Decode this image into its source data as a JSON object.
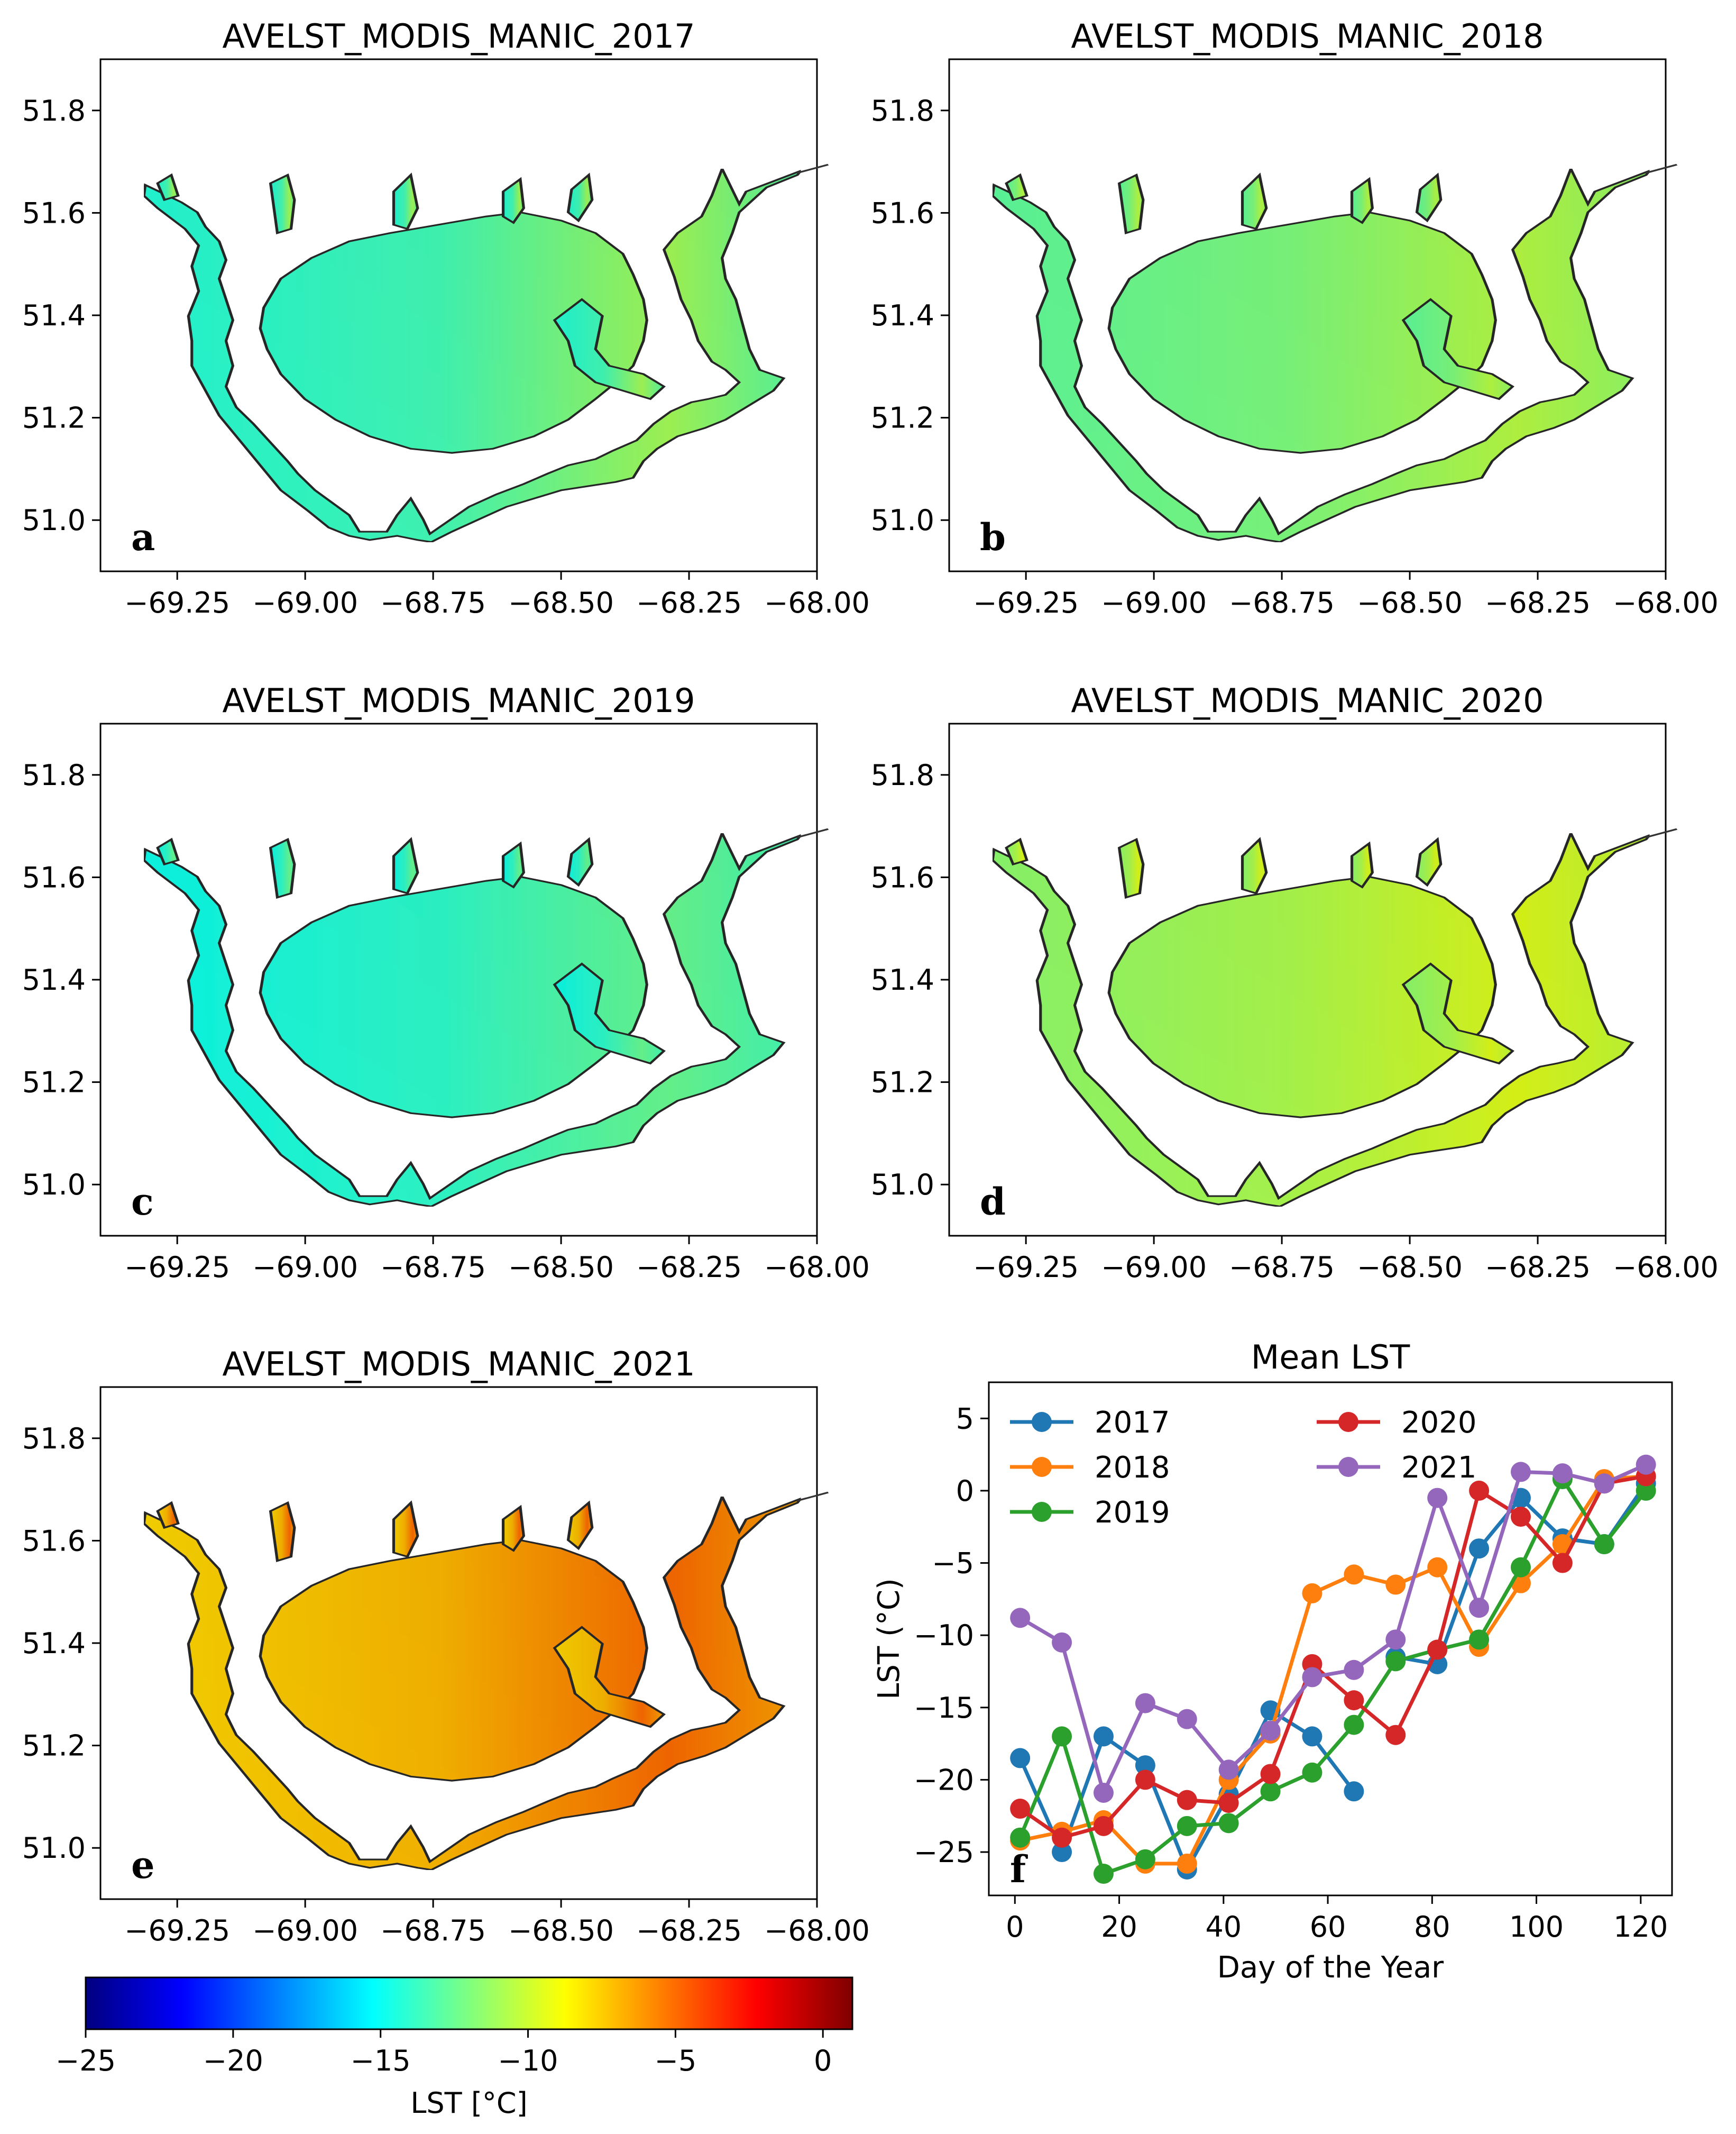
{
  "maps": [
    {
      "title": "AVELST_MODIS_MANIC_2017",
      "letter": "a",
      "mean_lst_c": -13.5,
      "east_lst_c": -11.0
    },
    {
      "title": "AVELST_MODIS_MANIC_2018",
      "letter": "b",
      "mean_lst_c": -12.0,
      "east_lst_c": -10.5
    },
    {
      "title": "AVELST_MODIS_MANIC_2019",
      "letter": "c",
      "mean_lst_c": -14.0,
      "east_lst_c": -12.5
    },
    {
      "title": "AVELST_MODIS_MANIC_2020",
      "letter": "d",
      "mean_lst_c": -10.8,
      "east_lst_c": -9.5
    },
    {
      "title": "AVELST_MODIS_MANIC_2021",
      "letter": "e",
      "mean_lst_c": -7.0,
      "east_lst_c": -5.0
    }
  ],
  "map_axes": {
    "xticks": [
      -69.25,
      -69.0,
      -68.75,
      -68.5,
      -68.25,
      -68.0
    ],
    "xtick_labels": [
      "−69.25",
      "−69.00",
      "−68.75",
      "−68.50",
      "−68.25",
      "−68.00"
    ],
    "xlim": [
      -69.4,
      -68.0
    ],
    "yticks": [
      51.0,
      51.2,
      51.4,
      51.6,
      51.8
    ],
    "ytick_labels": [
      "51.0",
      "51.2",
      "51.4",
      "51.6",
      "51.8"
    ],
    "ylim": [
      50.9,
      51.9
    ]
  },
  "colorbar": {
    "label": "LST [°C]",
    "range": [
      -25,
      1
    ],
    "ticks": [
      -25,
      -20,
      -15,
      -10,
      -5,
      0
    ],
    "tick_labels": [
      "−25",
      "−20",
      "−15",
      "−10",
      "−5",
      "0"
    ],
    "colormap": "jet"
  },
  "chart_data": {
    "type": "line",
    "title": "Mean LST",
    "letter": "f",
    "xlabel": "Day of the Year",
    "ylabel": "LST (°C)",
    "xlim": [
      -5,
      126
    ],
    "ylim": [
      -28,
      7.5
    ],
    "xticks": [
      0,
      20,
      40,
      60,
      80,
      100,
      120
    ],
    "xtick_labels": [
      "0",
      "20",
      "40",
      "60",
      "80",
      "100",
      "120"
    ],
    "yticks": [
      -25,
      -20,
      -15,
      -10,
      -5,
      0,
      5
    ],
    "ytick_labels": [
      "−25",
      "−20",
      "−15",
      "−10",
      "−5",
      "0",
      "5"
    ],
    "x": [
      1,
      9,
      17,
      25,
      33,
      41,
      49,
      57,
      65,
      73,
      81,
      89,
      97,
      105,
      113,
      121
    ],
    "series": [
      {
        "name": "2017",
        "color": "#1f77b4",
        "x": [
          1,
          9,
          17,
          25,
          33,
          41,
          49,
          57,
          65
        ],
        "values": [
          -18.5,
          -25.0,
          -17.0,
          -19.0,
          -26.2,
          -21.0,
          -15.2,
          -17.0,
          -20.8
        ]
      },
      {
        "name": "2017",
        "color": "#1f77b4",
        "x": [
          73,
          81,
          89,
          97,
          105,
          113,
          121
        ],
        "values": [
          -11.5,
          -12.0,
          -4.0,
          -0.5,
          -3.3,
          -3.7,
          0.5
        ],
        "legend": false
      },
      {
        "name": "2018",
        "color": "#ff7f0e",
        "x": [
          1,
          9,
          17,
          25,
          33,
          41,
          49,
          57,
          65,
          73,
          81,
          89,
          97,
          105,
          113,
          121
        ],
        "values": [
          -24.2,
          -23.6,
          -22.8,
          -25.8,
          -25.8,
          -20.0,
          -16.8,
          -7.1,
          -5.8,
          -6.5,
          -5.3,
          -10.8,
          -6.4,
          -3.7,
          0.8,
          1.0
        ]
      },
      {
        "name": "2019",
        "color": "#2ca02c",
        "x": [
          1,
          9,
          17,
          25,
          33,
          41,
          49,
          57,
          65,
          73,
          81,
          89,
          97,
          105,
          113,
          121
        ],
        "values": [
          -24.0,
          -17.0,
          -26.5,
          -25.5,
          -23.2,
          -23.0,
          -20.8,
          -19.5,
          -16.2,
          -11.8,
          -11.0,
          -10.3,
          -5.3,
          0.8,
          -3.7,
          0.0
        ]
      },
      {
        "name": "2020",
        "color": "#d62728",
        "x": [
          1,
          9,
          17,
          25,
          33,
          41,
          49,
          57,
          65,
          73,
          81,
          89,
          97,
          105,
          113,
          121
        ],
        "values": [
          -22.0,
          -24.0,
          -23.2,
          -20.0,
          -21.4,
          -21.6,
          -19.6,
          -12.0,
          -14.5,
          -16.9,
          -11.0,
          0.0,
          -1.8,
          -5.0,
          0.5,
          1.0
        ]
      },
      {
        "name": "2021",
        "color": "#9467bd",
        "x": [
          1,
          9,
          17,
          25,
          33,
          41,
          49,
          57,
          65,
          73,
          81,
          89,
          97,
          105,
          113,
          121
        ],
        "values": [
          -8.8,
          -10.5,
          -20.9,
          -14.7,
          -15.8,
          -19.3,
          -16.6,
          -12.9,
          -12.4,
          -10.3,
          -0.5,
          -8.1,
          1.3,
          1.2,
          0.5,
          1.8
        ]
      }
    ],
    "legend": {
      "placement": "top-left",
      "columns": 2
    }
  }
}
